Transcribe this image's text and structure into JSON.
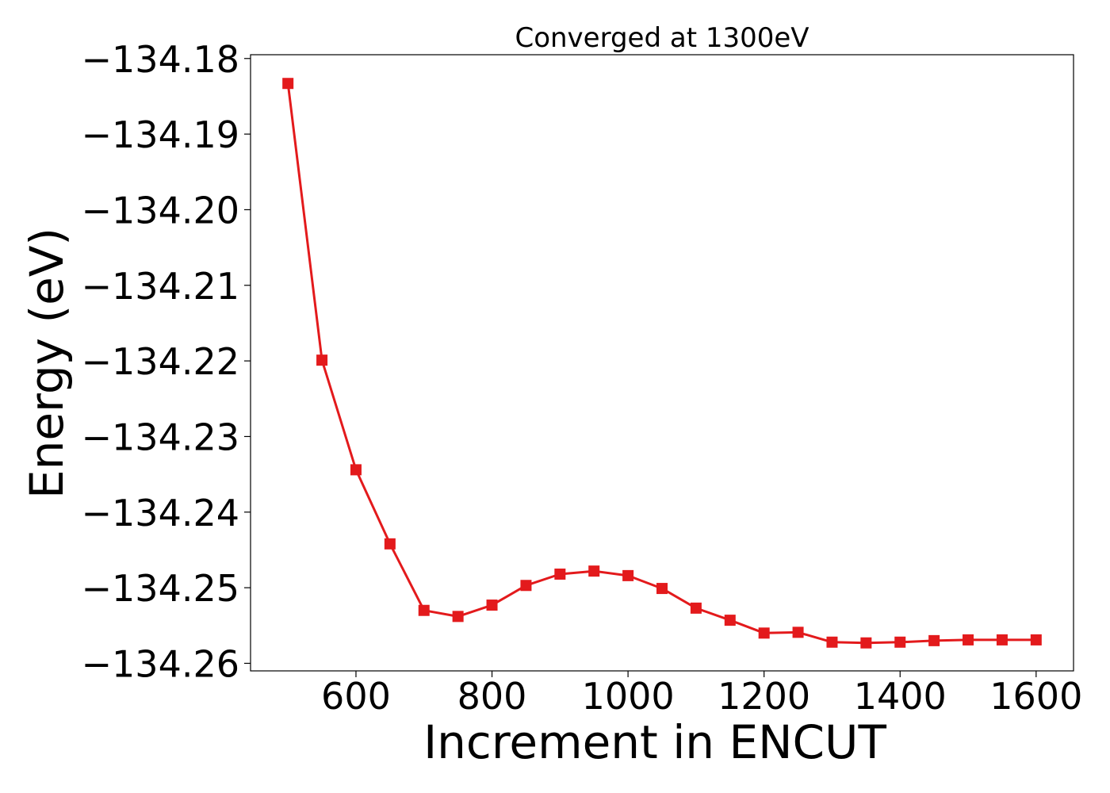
{
  "chart_data": {
    "type": "line",
    "title": "Converged at 1300eV",
    "xlabel": "Increment in ENCUT",
    "ylabel": "Energy (eV)",
    "xlim": [
      445,
      1655
    ],
    "ylim": [
      -134.261,
      -134.1795
    ],
    "x_ticks": [
      600,
      800,
      1000,
      1200,
      1400,
      1600
    ],
    "x_tick_labels": [
      "600",
      "800",
      "1000",
      "1200",
      "1400",
      "1600"
    ],
    "y_ticks": [
      -134.18,
      -134.19,
      -134.2,
      -134.21,
      -134.22,
      -134.23,
      -134.24,
      -134.25,
      -134.26
    ],
    "y_tick_labels": [
      "−134.18",
      "−134.19",
      "−134.20",
      "−134.21",
      "−134.22",
      "−134.23",
      "−134.24",
      "−134.25",
      "−134.26"
    ],
    "grid": false,
    "legend": "none",
    "series": [
      {
        "color": "#e31a1c",
        "marker": "square",
        "x": [
          500,
          550,
          600,
          650,
          700,
          750,
          800,
          850,
          900,
          950,
          1000,
          1050,
          1100,
          1150,
          1200,
          1250,
          1300,
          1350,
          1400,
          1450,
          1500,
          1550,
          1600
        ],
        "y": [
          -134.1833,
          -134.2199,
          -134.2344,
          -134.2442,
          -134.253,
          -134.2538,
          -134.2523,
          -134.2497,
          -134.2482,
          -134.2478,
          -134.2484,
          -134.2501,
          -134.2527,
          -134.2543,
          -134.256,
          -134.2559,
          -134.2572,
          -134.2573,
          -134.2572,
          -134.257,
          -134.2569,
          -134.2569,
          -134.2569
        ]
      }
    ]
  }
}
